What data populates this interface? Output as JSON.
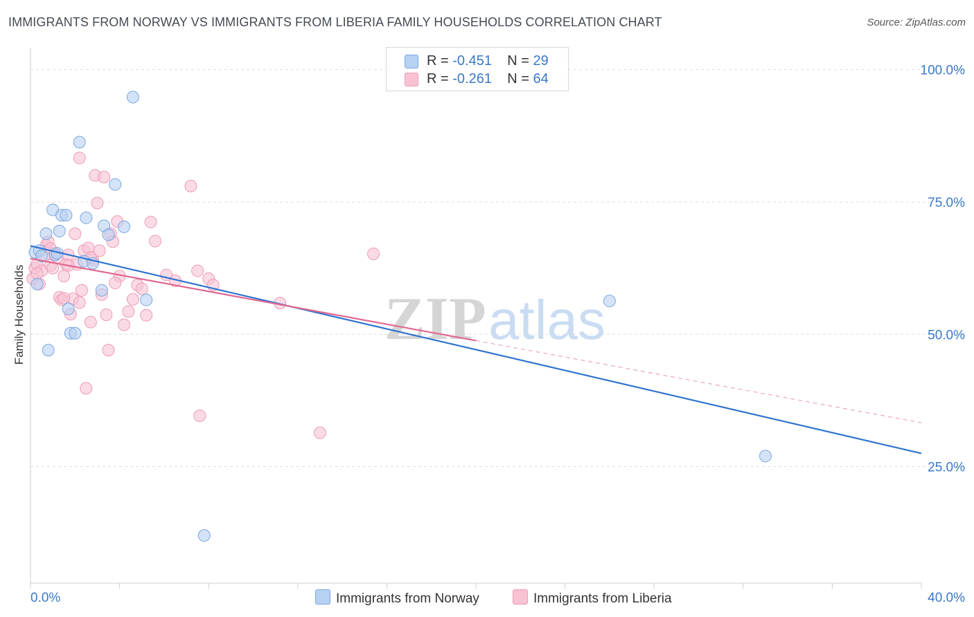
{
  "title": "IMMIGRANTS FROM NORWAY VS IMMIGRANTS FROM LIBERIA FAMILY HOUSEHOLDS CORRELATION CHART",
  "source": "Source: ZipAtlas.com",
  "watermark": {
    "zip": "ZIP",
    "atlas": "atlas"
  },
  "legend": {
    "norway": {
      "r_label": "R = ",
      "r_value": "-0.451",
      "n_label": "N = ",
      "n_value": "29"
    },
    "liberia": {
      "r_label": "R = ",
      "r_value": "-0.261",
      "n_label": "N = ",
      "n_value": "64"
    }
  },
  "colors": {
    "norway_fill": "#b7d1f2",
    "norway_stroke": "#7aa6e0",
    "norway_line": "#2f73d0",
    "liberia_fill": "#f7c3d3",
    "liberia_stroke": "#ee9ab5",
    "liberia_line": "#e06790",
    "tick_label": "#3a78c9",
    "grid": "#dddddd"
  },
  "chart_data": {
    "type": "scatter",
    "title": "IMMIGRANTS FROM NORWAY VS IMMIGRANTS FROM LIBERIA FAMILY HOUSEHOLDS CORRELATION CHART",
    "xlabel": "",
    "ylabel": "Family Households",
    "xlim": [
      0,
      40
    ],
    "ylim": [
      3,
      104
    ],
    "x_tick_labels": [
      "0.0%",
      "40.0%"
    ],
    "y_ticks": [
      25,
      50,
      75,
      100
    ],
    "y_tick_labels": [
      "25.0%",
      "50.0%",
      "75.0%",
      "100.0%"
    ],
    "grid": true,
    "series": [
      {
        "name": "Immigrants from Norway",
        "points": [
          [
            0.2,
            65.5
          ],
          [
            0.4,
            65.8
          ],
          [
            0.5,
            64.8
          ],
          [
            0.7,
            69.0
          ],
          [
            0.8,
            47.0
          ],
          [
            1.0,
            73.5
          ],
          [
            1.1,
            65.0
          ],
          [
            1.3,
            69.5
          ],
          [
            1.4,
            72.5
          ],
          [
            1.6,
            72.5
          ],
          [
            1.7,
            54.8
          ],
          [
            1.8,
            50.2
          ],
          [
            2.0,
            50.2
          ],
          [
            2.2,
            86.3
          ],
          [
            2.4,
            63.8
          ],
          [
            2.5,
            72.0
          ],
          [
            2.8,
            63.4
          ],
          [
            3.2,
            58.3
          ],
          [
            3.3,
            70.5
          ],
          [
            3.5,
            68.8
          ],
          [
            3.8,
            78.3
          ],
          [
            4.2,
            70.3
          ],
          [
            4.6,
            94.8
          ],
          [
            5.2,
            56.5
          ],
          [
            7.8,
            12.0
          ],
          [
            26.0,
            56.3
          ],
          [
            33.0,
            27.0
          ],
          [
            0.3,
            59.5
          ],
          [
            1.2,
            65.3
          ]
        ],
        "trend": {
          "x": [
            0,
            40
          ],
          "y": [
            66.7,
            27.5
          ]
        }
      },
      {
        "name": "Immigrants from Liberia",
        "points": [
          [
            0.1,
            60.5
          ],
          [
            0.2,
            62.5
          ],
          [
            0.3,
            63.2
          ],
          [
            0.4,
            59.5
          ],
          [
            0.5,
            62.0
          ],
          [
            0.6,
            64.8
          ],
          [
            0.7,
            66.8
          ],
          [
            0.8,
            67.5
          ],
          [
            0.9,
            63.0
          ],
          [
            1.0,
            62.5
          ],
          [
            1.1,
            65.3
          ],
          [
            1.2,
            64.5
          ],
          [
            1.3,
            57.0
          ],
          [
            1.4,
            56.5
          ],
          [
            1.5,
            61.0
          ],
          [
            1.6,
            63.2
          ],
          [
            1.7,
            65.0
          ],
          [
            1.8,
            53.8
          ],
          [
            1.9,
            56.7
          ],
          [
            2.0,
            69.0
          ],
          [
            2.1,
            63.2
          ],
          [
            2.2,
            56.0
          ],
          [
            2.3,
            58.3
          ],
          [
            2.4,
            65.8
          ],
          [
            2.5,
            39.8
          ],
          [
            2.6,
            66.3
          ],
          [
            2.7,
            52.3
          ],
          [
            2.8,
            64.0
          ],
          [
            2.9,
            80.0
          ],
          [
            3.0,
            74.8
          ],
          [
            3.1,
            65.8
          ],
          [
            3.2,
            57.5
          ],
          [
            3.3,
            79.7
          ],
          [
            3.4,
            53.7
          ],
          [
            3.5,
            47.0
          ],
          [
            3.6,
            69.0
          ],
          [
            3.7,
            67.5
          ],
          [
            3.9,
            71.3
          ],
          [
            4.0,
            61.0
          ],
          [
            4.2,
            51.8
          ],
          [
            4.4,
            54.3
          ],
          [
            4.6,
            56.6
          ],
          [
            4.8,
            59.3
          ],
          [
            5.0,
            58.6
          ],
          [
            5.2,
            53.6
          ],
          [
            5.4,
            71.2
          ],
          [
            5.6,
            67.6
          ],
          [
            6.1,
            61.2
          ],
          [
            6.5,
            60.1
          ],
          [
            7.2,
            78.0
          ],
          [
            7.5,
            62.0
          ],
          [
            7.6,
            34.6
          ],
          [
            8.0,
            60.5
          ],
          [
            8.2,
            59.3
          ],
          [
            11.2,
            55.9
          ],
          [
            13.0,
            31.4
          ],
          [
            15.4,
            65.2
          ],
          [
            3.8,
            59.7
          ],
          [
            2.2,
            83.3
          ],
          [
            1.5,
            56.8
          ],
          [
            0.9,
            66.2
          ],
          [
            1.7,
            63.0
          ],
          [
            2.7,
            64.5
          ],
          [
            0.3,
            61.5
          ]
        ],
        "trend": {
          "x": [
            0,
            20
          ],
          "y": [
            64.3,
            48.8
          ]
        },
        "trend_extension": {
          "x": [
            20,
            40
          ],
          "y": [
            48.8,
            33.3
          ]
        }
      }
    ]
  },
  "bottom_legend": {
    "norway_label": "Immigrants from Norway",
    "liberia_label": "Immigrants from Liberia"
  }
}
